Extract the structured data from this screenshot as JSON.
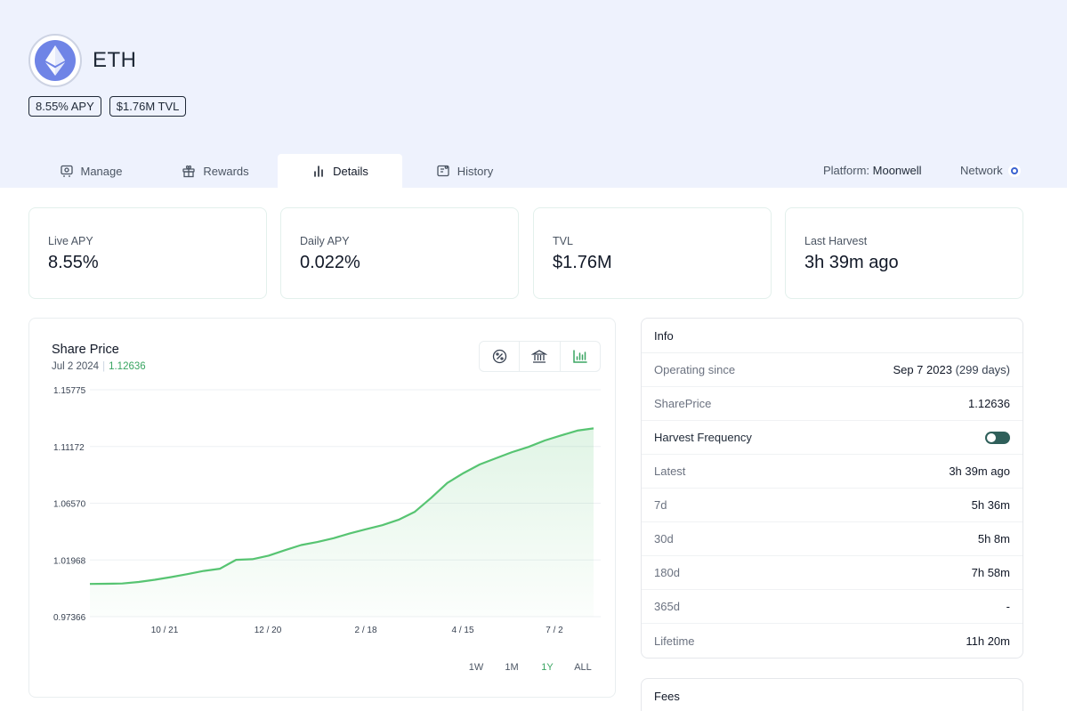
{
  "asset": {
    "name": "ETH",
    "apy_badge": "8.55% APY",
    "tvl_badge": "$1.76M TVL"
  },
  "tabs": [
    {
      "label": "Manage",
      "icon": "manage-icon"
    },
    {
      "label": "Rewards",
      "icon": "gift-icon"
    },
    {
      "label": "Details",
      "icon": "bar-chart-icon",
      "active": true
    },
    {
      "label": "History",
      "icon": "history-icon"
    }
  ],
  "platform": {
    "label": "Platform:",
    "value": "Moonwell"
  },
  "network": {
    "label": "Network",
    "icon": "network-icon"
  },
  "stats": [
    {
      "label": "Live APY",
      "value": "8.55%"
    },
    {
      "label": "Daily APY",
      "value": "0.022%"
    },
    {
      "label": "TVL",
      "value": "$1.76M"
    },
    {
      "label": "Last Harvest",
      "value": "3h 39m ago"
    }
  ],
  "chart": {
    "title": "Share Price",
    "sub_date": "Jul 2 2024",
    "sub_value": "1.12636",
    "buttons": [
      "percent-icon",
      "bank-icon",
      "bar-chart-icon"
    ],
    "ranges": [
      "1W",
      "1M",
      "1Y",
      "ALL"
    ],
    "active_range": "1Y"
  },
  "chart_data": {
    "type": "area",
    "title": "Share Price",
    "xlabel": "",
    "ylabel": "",
    "y_ticks": [
      "1.15775",
      "1.11172",
      "1.06570",
      "1.01968",
      "0.97366"
    ],
    "x_ticks": [
      "10 / 21",
      "12 / 20",
      "2 / 18",
      "4 / 15",
      "7 / 2"
    ],
    "ylim": [
      0.97366,
      1.15775
    ],
    "grid": true,
    "color": "#57c472",
    "series": [
      {
        "values": [
          1.0002,
          1.0004,
          1.0006,
          1.0018,
          1.0036,
          1.0058,
          1.0082,
          1.0108,
          1.0126,
          1.0198,
          1.0203,
          1.0232,
          1.0276,
          1.0318,
          1.0342,
          1.0373,
          1.0412,
          1.0446,
          1.0479,
          1.0523,
          1.0588,
          1.07,
          1.0822,
          1.0902,
          1.0972,
          1.1022,
          1.1072,
          1.1114,
          1.1166,
          1.1207,
          1.1246,
          1.1264
        ]
      }
    ]
  },
  "info": {
    "title": "Info",
    "rows": [
      {
        "key": "Operating since",
        "value": "Sep 7 2023",
        "extra": "(299 days)"
      },
      {
        "key": "SharePrice",
        "value": "1.12636"
      },
      {
        "key": "Harvest Frequency",
        "toggle": true
      },
      {
        "key": "Latest",
        "value": "3h 39m ago"
      },
      {
        "key": "7d",
        "value": "5h 36m"
      },
      {
        "key": "30d",
        "value": "5h 8m"
      },
      {
        "key": "180d",
        "value": "7h 58m"
      },
      {
        "key": "365d",
        "value": "-"
      },
      {
        "key": "Lifetime",
        "value": "11h 20m"
      }
    ]
  },
  "fees": {
    "title": "Fees"
  }
}
